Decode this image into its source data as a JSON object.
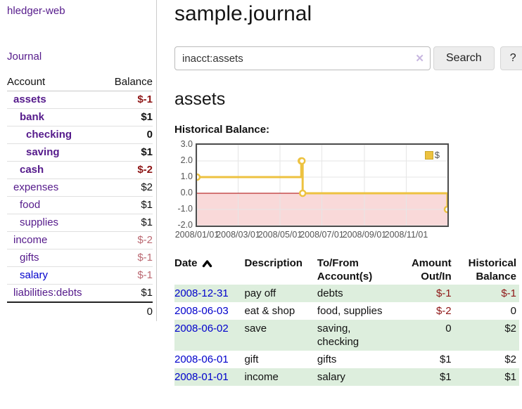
{
  "app": {
    "name": "hledger-web"
  },
  "sidebar": {
    "journal_label": "Journal",
    "accounts_table": {
      "headers": {
        "account": "Account",
        "balance": "Balance"
      },
      "rows": [
        {
          "name": "assets",
          "indent": 1,
          "bold": true,
          "balance": "$-1",
          "balance_style": "neg-strong"
        },
        {
          "name": "bank",
          "indent": 2,
          "bold": true,
          "balance": "$1",
          "balance_style": "pos"
        },
        {
          "name": "checking",
          "indent": 3,
          "bold": true,
          "balance": "0",
          "balance_style": "pos"
        },
        {
          "name": "saving",
          "indent": 3,
          "bold": true,
          "balance": "$1",
          "balance_style": "pos"
        },
        {
          "name": "cash",
          "indent": 2,
          "bold": true,
          "balance": "$-2",
          "balance_style": "neg-strong"
        },
        {
          "name": "expenses",
          "indent": 1,
          "bold": false,
          "balance": "$2",
          "balance_style": "pos"
        },
        {
          "name": "food",
          "indent": 2,
          "bold": false,
          "balance": "$1",
          "balance_style": "pos"
        },
        {
          "name": "supplies",
          "indent": 2,
          "bold": false,
          "balance": "$1",
          "balance_style": "pos"
        },
        {
          "name": "income",
          "indent": 1,
          "bold": false,
          "balance": "$-2",
          "balance_style": "neg-soft"
        },
        {
          "name": "gifts",
          "indent": 2,
          "bold": false,
          "balance": "$-1",
          "balance_style": "neg-soft"
        },
        {
          "name": "salary",
          "indent": 2,
          "bold": false,
          "balance": "$-1",
          "balance_style": "neg-soft",
          "link_color": "blue"
        },
        {
          "name": "liabilities:debts",
          "indent": 1,
          "bold": false,
          "balance": "$1",
          "balance_style": "pos"
        }
      ],
      "total": "0"
    }
  },
  "header": {
    "title": "sample.journal"
  },
  "search": {
    "value": "inacct:assets",
    "clear_icon": "✕",
    "button_label": "Search",
    "help_label": "?"
  },
  "account_page": {
    "heading": "assets",
    "chart_label": "Historical Balance:"
  },
  "chart_data": {
    "type": "line",
    "title": "Historical Balance",
    "step": true,
    "line_color": "#edc240",
    "marker": "open-circle",
    "negative_region_color": "#f9d9d9",
    "zero_line_color": "#aa0000",
    "grid_color": "#e6e6e6",
    "series_label": "$",
    "legend_position": "top-right",
    "x_domain_days": [
      0,
      365
    ],
    "ylim": [
      -2,
      3
    ],
    "y_ticks": [
      3.0,
      2.0,
      1.0,
      0.0,
      -1.0,
      -2.0
    ],
    "x_ticks": [
      {
        "day": 0,
        "label": "2008/01/01"
      },
      {
        "day": 60,
        "label": "2008/03/01"
      },
      {
        "day": 121,
        "label": "2008/05/01"
      },
      {
        "day": 182,
        "label": "2008/07/01"
      },
      {
        "day": 244,
        "label": "2008/09/01"
      },
      {
        "day": 305,
        "label": "2008/11/01"
      }
    ],
    "points": [
      {
        "date": "2008-01-01",
        "day": 0,
        "value": 1
      },
      {
        "date": "2008-06-01",
        "day": 152,
        "value": 2
      },
      {
        "date": "2008-06-02",
        "day": 153,
        "value": 2
      },
      {
        "date": "2008-06-03",
        "day": 154,
        "value": 0
      },
      {
        "date": "2008-12-31",
        "day": 365,
        "value": -1
      }
    ]
  },
  "register_table": {
    "headers": {
      "date": "Date",
      "sort_icon": "chevron-up",
      "description": "Description",
      "tofrom": [
        "To/From",
        "Account(s)"
      ],
      "amount": [
        "Amount",
        "Out/In"
      ],
      "historical": [
        "Historical",
        "Balance"
      ]
    },
    "rows": [
      {
        "date": "2008-12-31",
        "description": "pay off",
        "accounts": "debts",
        "amount": "$-1",
        "amount_neg": true,
        "balance": "$-1",
        "balance_neg": true,
        "shade": true
      },
      {
        "date": "2008-06-03",
        "description": "eat & shop",
        "accounts": "food, supplies",
        "amount": "$-2",
        "amount_neg": true,
        "balance": "0",
        "balance_neg": false,
        "shade": false
      },
      {
        "date": "2008-06-02",
        "description": "save",
        "accounts": "saving,\nchecking",
        "amount": "0",
        "amount_neg": false,
        "balance": "$2",
        "balance_neg": false,
        "shade": true
      },
      {
        "date": "2008-06-01",
        "description": "gift",
        "accounts": "gifts",
        "amount": "$1",
        "amount_neg": false,
        "balance": "$2",
        "balance_neg": false,
        "shade": false
      },
      {
        "date": "2008-01-01",
        "description": "income",
        "accounts": "salary",
        "amount": "$1",
        "amount_neg": false,
        "balance": "$1",
        "balance_neg": false,
        "shade": true
      }
    ]
  },
  "colors": {
    "link_visited_purple": "#551a8b",
    "link_blue": "#0000cc",
    "negative_strong": "#8e1515",
    "negative_soft": "#bb6972",
    "row_stripe_green": "#ddeedd",
    "chart_line_yellow": "#edc240",
    "chart_negative_pink": "#f9d9d9",
    "chart_zero_line": "#aa0000"
  }
}
